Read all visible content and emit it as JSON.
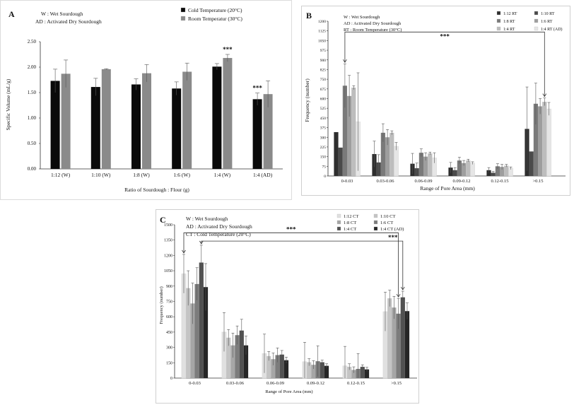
{
  "chart_data": [
    {
      "id": "A",
      "type": "bar",
      "panel_label": "A",
      "notes": [
        "W : Wet Sourdough",
        "AD : Activated Dry Sourdough"
      ],
      "categories": [
        "1:12  (W)",
        "1:10 (W)",
        "1:8 (W)",
        "1:6 (W)",
        "1:4 (W)",
        "1:4 (AD)"
      ],
      "series": [
        {
          "name": "Cold Temperature (20°C)",
          "color": "#0a0a0a",
          "values": [
            1.73,
            1.61,
            1.66,
            1.58,
            2.01,
            1.37
          ],
          "errors": [
            0.23,
            0.17,
            0.11,
            0.13,
            0.06,
            0.12
          ]
        },
        {
          "name": "Room Temperatur (30°C)",
          "color": "#8a8a8a",
          "values": [
            1.87,
            1.96,
            1.88,
            1.91,
            2.18,
            1.47
          ],
          "errors": [
            0.27,
            0.01,
            0.17,
            0.17,
            0.07,
            0.26
          ]
        }
      ],
      "xlabel": "Ratio of Sourdough : Flour (g)",
      "ylabel": "Specific Volume (mL/g)",
      "ylim": [
        0,
        2.5
      ],
      "yticks": [
        "0.00",
        "0.50",
        "1.00",
        "1.50",
        "2.00",
        "2.50"
      ],
      "annotations": [
        {
          "text": "***",
          "category": 4,
          "series": 1
        },
        {
          "text": "***",
          "category": 5,
          "series": 0
        }
      ]
    },
    {
      "id": "B",
      "type": "bar",
      "panel_label": "B",
      "notes": [
        "W : Wet Sourdough",
        "AD : Activated Dry Sourdough",
        "RT : Room Temperature (30°C)"
      ],
      "categories": [
        "0-0.03",
        "0.03-0.06",
        "0.06-0.09",
        "0.09-0.12",
        "0.12-0.15",
        ">0.15"
      ],
      "series": [
        {
          "name": "1:12 RT",
          "color": "#2e2e2e",
          "values": [
            340,
            170,
            95,
            65,
            45,
            365
          ],
          "errors": [
            0,
            100,
            80,
            40,
            20,
            325
          ]
        },
        {
          "name": "1:10 RT",
          "color": "#4a4a4a",
          "values": [
            220,
            105,
            60,
            45,
            25,
            190
          ],
          "errors": [
            0,
            60,
            40,
            20,
            10,
            0
          ]
        },
        {
          "name": "1:8 RT",
          "color": "#7a7a7a",
          "values": [
            700,
            335,
            180,
            120,
            75,
            560
          ],
          "errors": [
            170,
            70,
            30,
            25,
            20,
            160
          ]
        },
        {
          "name": "1:6 RT",
          "color": "#9e9e9e",
          "values": [
            620,
            300,
            150,
            100,
            70,
            540
          ],
          "errors": [
            160,
            60,
            30,
            20,
            20,
            60
          ]
        },
        {
          "name": "1:4 RT",
          "color": "#bdbdbd",
          "values": [
            685,
            335,
            175,
            120,
            80,
            575
          ],
          "errors": [
            15,
            15,
            10,
            10,
            10,
            30
          ]
        },
        {
          "name": "1:4 RT (AD)",
          "color": "#e6e6e6",
          "values": [
            420,
            230,
            140,
            100,
            60,
            520
          ],
          "errors": [
            380,
            30,
            40,
            10,
            10,
            50
          ]
        }
      ],
      "xlabel": "Range of Pore Area (mm)",
      "ylabel": "Frequency (number)",
      "ylim": [
        0,
        1200
      ],
      "yticks": [
        "0",
        "75",
        "150",
        "225",
        "300",
        "375",
        "450",
        "525",
        "600",
        "675",
        "750",
        "825",
        "900",
        "975",
        "1050",
        "1125",
        "1200"
      ],
      "annotations": [
        {
          "text": "***",
          "from_category": 0,
          "to_category": 5
        }
      ]
    },
    {
      "id": "C",
      "type": "bar",
      "panel_label": "C",
      "notes": [
        "W : Wet Sourdough",
        "AD : Activated Dry  Sourdough",
        "CT : Cold Temperature (20°C)"
      ],
      "categories": [
        "0-0.03",
        "0.03-0.06",
        "0.06-0.09",
        "0.09-0.12",
        "0.12-0.15",
        ">0.15"
      ],
      "series": [
        {
          "name": "1:12 CT",
          "color": "#e0e0e0",
          "values": [
            1020,
            450,
            240,
            160,
            120,
            650
          ],
          "errors": [
            190,
            190,
            190,
            190,
            190,
            190
          ]
        },
        {
          "name": "1:10 CT",
          "color": "#c4c4c4",
          "values": [
            880,
            395,
            215,
            155,
            110,
            780
          ],
          "errors": [
            170,
            80,
            45,
            35,
            30,
            80
          ]
        },
        {
          "name": "1:8 CT",
          "color": "#a6a6a6",
          "values": [
            730,
            320,
            185,
            130,
            80,
            690
          ],
          "errors": [
            200,
            120,
            60,
            40,
            30,
            110
          ]
        },
        {
          "name": "1:6 CT",
          "color": "#7c7c7c",
          "values": [
            920,
            420,
            225,
            165,
            90,
            630
          ],
          "errors": [
            160,
            90,
            70,
            150,
            150,
            150
          ]
        },
        {
          "name": "1:4 CT",
          "color": "#515151",
          "values": [
            1130,
            465,
            230,
            155,
            110,
            790
          ],
          "errors": [
            170,
            110,
            40,
            20,
            20,
            60
          ]
        },
        {
          "name": "1:4 CT (AD)",
          "color": "#262626",
          "values": [
            890,
            320,
            175,
            120,
            85,
            655
          ],
          "errors": [
            230,
            90,
            30,
            20,
            20,
            80
          ]
        }
      ],
      "xlabel": "Range of Pore Area (mm)",
      "ylabel": "Frequency (number)",
      "ylim": [
        0,
        1500
      ],
      "yticks": [
        "0",
        "150",
        "300",
        "450",
        "600",
        "750",
        "900",
        "1050",
        "1200",
        "1350",
        "1500"
      ],
      "annotations": [
        {
          "text": "***",
          "from_category": 0,
          "to_category": 5
        },
        {
          "text": "***",
          "from_category": 0,
          "to_category": 5
        }
      ]
    }
  ]
}
